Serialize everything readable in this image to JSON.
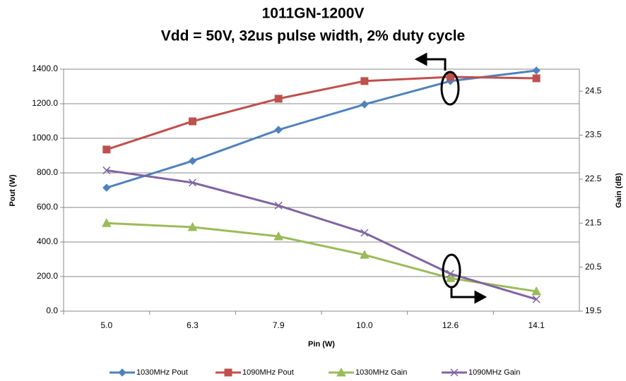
{
  "chart_data": {
    "type": "line",
    "title": "1011GN-1200V",
    "subtitle": "Vdd = 50V, 32us pulse width, 2% duty cycle",
    "x_label": "Pin (W)",
    "y_label": "Pout (W)",
    "y2_label": "Gain (dB)",
    "categories": [
      "5.0",
      "6.3",
      "7.9",
      "10.0",
      "12.6",
      "14.1"
    ],
    "series": [
      {
        "name": "1030MHz Pout",
        "color": "#4f81bd",
        "marker": "diamond",
        "values": [
          714,
          869,
          1049,
          1196,
          1331,
          1392
        ]
      },
      {
        "name": "1090MHz Pout",
        "color": "#c0504d",
        "marker": "square",
        "values": [
          935,
          1098,
          1229,
          1331,
          1355,
          1347
        ]
      },
      {
        "name": "1030MHz Gain",
        "color": "#9bbb59",
        "marker": "triangle",
        "axis": "y2",
        "values": [
          21.5,
          21.41,
          21.2,
          20.78,
          20.25,
          19.95
        ]
      },
      {
        "name": "1090MHz Gain",
        "color": "#8064a2",
        "marker": "x",
        "axis": "y2",
        "values": [
          22.7,
          22.42,
          21.9,
          21.28,
          20.35,
          19.77
        ]
      }
    ],
    "ylim": [
      0,
      1400
    ],
    "yticks": [
      {
        "value": 0,
        "label": "0.0"
      },
      {
        "value": 200,
        "label": "200.0"
      },
      {
        "value": 400,
        "label": "400.0"
      },
      {
        "value": 600,
        "label": "600.0"
      },
      {
        "value": 800,
        "label": "800.0"
      },
      {
        "value": 1000,
        "label": "1000.0"
      },
      {
        "value": 1200,
        "label": "1200.0"
      },
      {
        "value": 1400,
        "label": "1400.0"
      }
    ],
    "y2lim": [
      19.5,
      25.0
    ],
    "y2ticks": [
      19.5,
      20.5,
      21.5,
      22.5,
      23.5,
      24.5
    ],
    "grid": true,
    "legend": "bottom"
  }
}
